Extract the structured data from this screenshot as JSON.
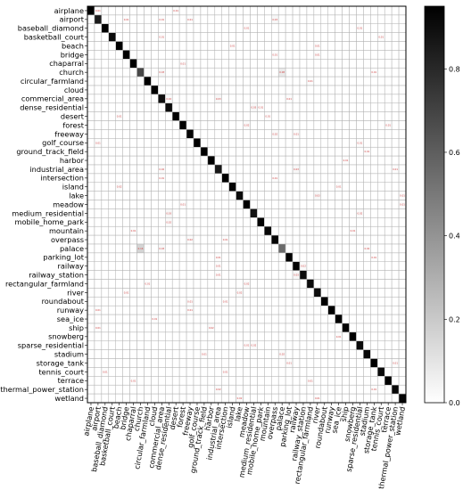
{
  "chart_data": {
    "type": "heatmap",
    "title": "",
    "xlabel": "",
    "ylabel": "",
    "labels": [
      "airplane",
      "airport",
      "baseball_diamond",
      "basketball_court",
      "beach",
      "bridge",
      "chaparral",
      "church",
      "circular_farmland",
      "cloud",
      "commercial_area",
      "dense_residential",
      "desert",
      "forest",
      "freeway",
      "golf_course",
      "ground_track_field",
      "harbor",
      "industrial_area",
      "intersection",
      "island",
      "lake",
      "meadow",
      "medium_residential",
      "mobile_home_park",
      "mountain",
      "overpass",
      "palace",
      "parking_lot",
      "railway",
      "railway_station",
      "rectangular_farmland",
      "river",
      "roundabout",
      "runway",
      "sea_ice",
      "ship",
      "snowberg",
      "sparse_residential",
      "stadium",
      "storage_tank",
      "tennis_court",
      "terrace",
      "thermal_power_station",
      "wetland"
    ],
    "diagonal": [
      0.96,
      0.85,
      0.97,
      0.91,
      0.95,
      0.95,
      0.98,
      0.68,
      0.97,
      0.98,
      0.89,
      0.9,
      0.94,
      0.94,
      0.93,
      0.95,
      0.97,
      0.99,
      0.86,
      0.95,
      0.93,
      0.91,
      0.95,
      0.88,
      0.94,
      0.92,
      0.93,
      0.55,
      0.94,
      0.93,
      0.9,
      0.91,
      0.9,
      0.96,
      0.97,
      0.99,
      0.94,
      0.98,
      0.91,
      0.92,
      0.96,
      0.91,
      0.95,
      0.92,
      0.93
    ],
    "off_diagonal_labels": [
      {
        "row": 0,
        "col": 1,
        "value": 0.01
      },
      {
        "row": 0,
        "col": 12,
        "value": 0.01
      },
      {
        "row": 1,
        "col": 5,
        "value": 0.01
      },
      {
        "row": 1,
        "col": 10,
        "value": 0.01
      },
      {
        "row": 1,
        "col": 14,
        "value": 0.01
      },
      {
        "row": 1,
        "col": 26,
        "value": 0.03
      },
      {
        "row": 2,
        "col": 22,
        "value": 0.01
      },
      {
        "row": 2,
        "col": 38,
        "value": 0.01
      },
      {
        "row": 3,
        "col": 10,
        "value": 0.01
      },
      {
        "row": 3,
        "col": 41,
        "value": 0.01
      },
      {
        "row": 4,
        "col": 20,
        "value": 0.01
      },
      {
        "row": 4,
        "col": 32,
        "value": 0.01
      },
      {
        "row": 5,
        "col": 26,
        "value": 0.01
      },
      {
        "row": 5,
        "col": 32,
        "value": 0.01
      },
      {
        "row": 6,
        "col": 13,
        "value": 0.01
      },
      {
        "row": 7,
        "col": 10,
        "value": 0.03
      },
      {
        "row": 7,
        "col": 27,
        "value": 0.08
      },
      {
        "row": 7,
        "col": 40,
        "value": 0.01
      },
      {
        "row": 8,
        "col": 31,
        "value": 0.01
      },
      {
        "row": 10,
        "col": 11,
        "value": 0.02
      },
      {
        "row": 10,
        "col": 18,
        "value": 0.03
      },
      {
        "row": 10,
        "col": 28,
        "value": 0.01
      },
      {
        "row": 11,
        "col": 23,
        "value": 0.03
      },
      {
        "row": 11,
        "col": 24,
        "value": 0.01
      },
      {
        "row": 12,
        "col": 4,
        "value": 0.01
      },
      {
        "row": 12,
        "col": 25,
        "value": 0.01
      },
      {
        "row": 13,
        "col": 22,
        "value": 0.02
      },
      {
        "row": 13,
        "col": 42,
        "value": 0.01
      },
      {
        "row": 14,
        "col": 26,
        "value": 0.02
      },
      {
        "row": 14,
        "col": 29,
        "value": 0.01
      },
      {
        "row": 15,
        "col": 1,
        "value": 0.01
      },
      {
        "row": 15,
        "col": 38,
        "value": 0.01
      },
      {
        "row": 16,
        "col": 39,
        "value": 0.01
      },
      {
        "row": 17,
        "col": 36,
        "value": 0.01
      },
      {
        "row": 18,
        "col": 10,
        "value": 0.02
      },
      {
        "row": 18,
        "col": 29,
        "value": 0.03
      },
      {
        "row": 18,
        "col": 43,
        "value": 0.01
      },
      {
        "row": 19,
        "col": 26,
        "value": 0.01
      },
      {
        "row": 19,
        "col": 10,
        "value": 0.01
      },
      {
        "row": 20,
        "col": 4,
        "value": 0.02
      },
      {
        "row": 20,
        "col": 35,
        "value": 0.01
      },
      {
        "row": 21,
        "col": 32,
        "value": 0.03
      },
      {
        "row": 21,
        "col": 44,
        "value": 0.01
      },
      {
        "row": 22,
        "col": 13,
        "value": 0.01
      },
      {
        "row": 22,
        "col": 44,
        "value": 0.01
      },
      {
        "row": 23,
        "col": 11,
        "value": 0.03
      },
      {
        "row": 23,
        "col": 38,
        "value": 0.02
      },
      {
        "row": 24,
        "col": 11,
        "value": 0.02
      },
      {
        "row": 25,
        "col": 6,
        "value": 0.01
      },
      {
        "row": 25,
        "col": 37,
        "value": 0.01
      },
      {
        "row": 26,
        "col": 14,
        "value": 0.02
      },
      {
        "row": 26,
        "col": 19,
        "value": 0.01
      },
      {
        "row": 27,
        "col": 7,
        "value": 0.16
      },
      {
        "row": 27,
        "col": 10,
        "value": 0.03
      },
      {
        "row": 27,
        "col": 39,
        "value": 0.02
      },
      {
        "row": 28,
        "col": 18,
        "value": 0.01
      },
      {
        "row": 28,
        "col": 40,
        "value": 0.01
      },
      {
        "row": 29,
        "col": 30,
        "value": 0.02
      },
      {
        "row": 29,
        "col": 18,
        "value": 0.01
      },
      {
        "row": 30,
        "col": 29,
        "value": 0.03
      },
      {
        "row": 30,
        "col": 18,
        "value": 0.01
      },
      {
        "row": 31,
        "col": 8,
        "value": 0.01
      },
      {
        "row": 31,
        "col": 22,
        "value": 0.02
      },
      {
        "row": 32,
        "col": 21,
        "value": 0.02
      },
      {
        "row": 32,
        "col": 5,
        "value": 0.01
      },
      {
        "row": 33,
        "col": 19,
        "value": 0.01
      },
      {
        "row": 33,
        "col": 14,
        "value": 0.01
      },
      {
        "row": 34,
        "col": 14,
        "value": 0.01
      },
      {
        "row": 34,
        "col": 1,
        "value": 0.01
      },
      {
        "row": 35,
        "col": 9,
        "value": 0.01
      },
      {
        "row": 36,
        "col": 17,
        "value": 0.02
      },
      {
        "row": 36,
        "col": 1,
        "value": 0.01
      },
      {
        "row": 37,
        "col": 35,
        "value": 0.01
      },
      {
        "row": 38,
        "col": 23,
        "value": 0.02
      },
      {
        "row": 38,
        "col": 22,
        "value": 0.01
      },
      {
        "row": 39,
        "col": 16,
        "value": 0.01
      },
      {
        "row": 39,
        "col": 27,
        "value": 0.02
      },
      {
        "row": 40,
        "col": 28,
        "value": 0.01
      },
      {
        "row": 40,
        "col": 43,
        "value": 0.01
      },
      {
        "row": 41,
        "col": 2,
        "value": 0.01
      },
      {
        "row": 41,
        "col": 19,
        "value": 0.01
      },
      {
        "row": 42,
        "col": 31,
        "value": 0.01
      },
      {
        "row": 42,
        "col": 6,
        "value": 0.01
      },
      {
        "row": 43,
        "col": 18,
        "value": 0.02
      },
      {
        "row": 43,
        "col": 40,
        "value": 0.01
      },
      {
        "row": 44,
        "col": 21,
        "value": 0.02
      },
      {
        "row": 44,
        "col": 32,
        "value": 0.01
      }
    ],
    "colorbar": {
      "min": 0.0,
      "max": 0.95,
      "ticks": [
        "0.0",
        "0.2",
        "0.4",
        "0.6",
        "0.8"
      ],
      "tick_values": [
        0.0,
        0.2,
        0.4,
        0.6,
        0.8
      ],
      "scheme": "white-to-black"
    },
    "grid": true
  }
}
